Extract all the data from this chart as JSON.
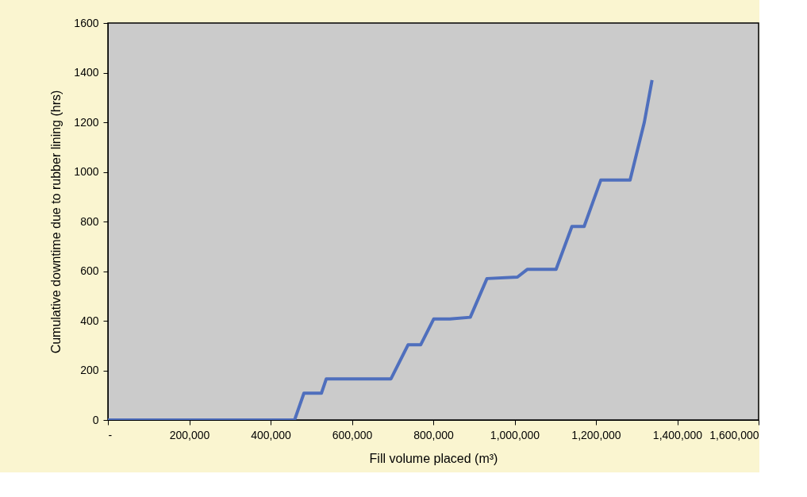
{
  "chart_data": {
    "type": "line",
    "xlabel": "Fill volume placed (m³)",
    "ylabel": "Cumulative downtime due to rubber lining (hrs)",
    "x": [
      0,
      459000,
      482000,
      525000,
      537000,
      696000,
      738000,
      769000,
      801000,
      841000,
      891000,
      932000,
      1007000,
      1031000,
      1102000,
      1141000,
      1171000,
      1212000,
      1284000,
      1319000,
      1338000
    ],
    "series": [
      {
        "color": "#4f6fbd",
        "values": [
          0,
          0,
          108,
          108,
          166,
          166,
          303,
          303,
          407,
          407,
          414,
          570,
          576,
          607,
          607,
          780,
          780,
          967,
          967,
          1200,
          1370
        ]
      }
    ],
    "xlim": [
      0,
      1600000
    ],
    "xticks": [
      {
        "value": 0,
        "label": "-"
      },
      {
        "value": 200000,
        "label": "200,000"
      },
      {
        "value": 400000,
        "label": "400,000"
      },
      {
        "value": 600000,
        "label": "600,000"
      },
      {
        "value": 800000,
        "label": "800,000"
      },
      {
        "value": 1000000,
        "label": "1,000,000"
      },
      {
        "value": 1200000,
        "label": "1,200,000"
      },
      {
        "value": 1400000,
        "label": "1,400,000"
      },
      {
        "value": 1600000,
        "label": "1,600,000"
      }
    ],
    "ylim": [
      0,
      1600
    ],
    "yticks": [
      0,
      200,
      400,
      600,
      800,
      1000,
      1200,
      1400,
      1600
    ],
    "grid": false,
    "marker": "none",
    "line_style": "solid"
  }
}
